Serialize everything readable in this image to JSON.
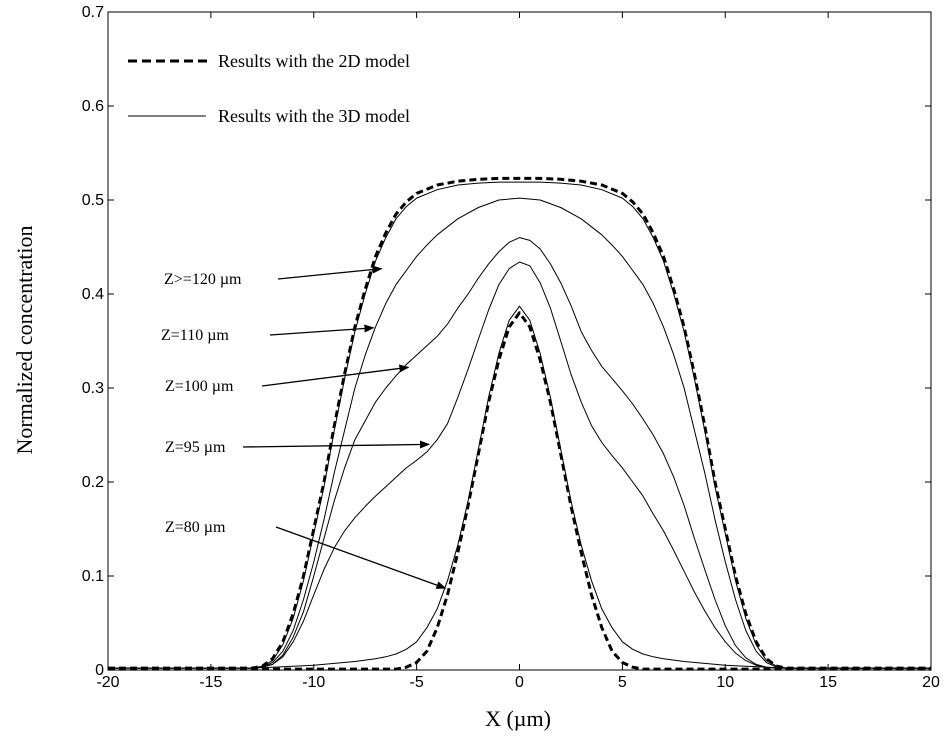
{
  "chart_data": {
    "type": "line",
    "xlabel": "X (µm)",
    "ylabel": "Normalized concentration",
    "xlim": [
      -20,
      20
    ],
    "ylim": [
      0,
      0.7
    ],
    "xticks": [
      -20,
      -15,
      -10,
      -5,
      0,
      5,
      10,
      15,
      20
    ],
    "yticks": [
      0,
      0.1,
      0.2,
      0.3,
      0.4,
      0.5,
      0.6,
      0.7
    ],
    "xtick_labels": [
      "-20",
      "-15",
      "-10",
      "-5",
      "0",
      "5",
      "10",
      "15",
      "20"
    ],
    "ytick_labels": [
      "0",
      "0.1",
      "0.2",
      "0.3",
      "0.4",
      "0.5",
      "0.6",
      "0.7"
    ],
    "grid": false,
    "legend_position": "top-left",
    "legend": [
      {
        "label": "Results with the 2D model",
        "style": "dashed"
      },
      {
        "label": "Results with the 3D model",
        "style": "solid"
      }
    ],
    "series": [
      {
        "model": "2D",
        "z": "Z>=120 µm",
        "style": "dashed",
        "x": [
          -20,
          -13,
          -12.5,
          -12,
          -11.5,
          -11,
          -10.5,
          -10,
          -9.5,
          -9,
          -8.5,
          -8,
          -7.5,
          -7,
          -6.5,
          -6,
          -5.5,
          -5,
          -4,
          -3,
          -2,
          -1,
          0,
          1,
          2,
          3,
          4,
          5,
          5.5,
          6,
          6.5,
          7,
          7.5,
          8,
          8.5,
          9,
          9.5,
          10,
          10.5,
          11,
          11.5,
          12,
          12.5,
          13,
          20
        ],
        "y": [
          0.002,
          0.002,
          0.004,
          0.012,
          0.03,
          0.06,
          0.1,
          0.15,
          0.2,
          0.26,
          0.315,
          0.365,
          0.405,
          0.44,
          0.465,
          0.485,
          0.498,
          0.507,
          0.516,
          0.52,
          0.522,
          0.523,
          0.523,
          0.523,
          0.522,
          0.52,
          0.516,
          0.507,
          0.498,
          0.485,
          0.465,
          0.44,
          0.405,
          0.365,
          0.315,
          0.26,
          0.2,
          0.15,
          0.1,
          0.06,
          0.03,
          0.012,
          0.004,
          0.002,
          0.002
        ]
      },
      {
        "model": "3D",
        "z": "Z>=120 µm",
        "style": "solid",
        "x": [
          -20,
          -13,
          -12.5,
          -12,
          -11.5,
          -11,
          -10.5,
          -10,
          -9.5,
          -9,
          -8.5,
          -8,
          -7.5,
          -7,
          -6.5,
          -6,
          -5.5,
          -5,
          -4,
          -3,
          -2,
          -1,
          0,
          1,
          2,
          3,
          4,
          5,
          5.5,
          6,
          6.5,
          7,
          7.5,
          8,
          8.5,
          9,
          9.5,
          10,
          10.5,
          11,
          11.5,
          12,
          12.5,
          13,
          20
        ],
        "y": [
          0.002,
          0.002,
          0.004,
          0.01,
          0.027,
          0.055,
          0.095,
          0.145,
          0.195,
          0.255,
          0.31,
          0.36,
          0.4,
          0.435,
          0.46,
          0.48,
          0.493,
          0.502,
          0.511,
          0.516,
          0.518,
          0.519,
          0.519,
          0.519,
          0.518,
          0.516,
          0.511,
          0.502,
          0.493,
          0.48,
          0.46,
          0.435,
          0.4,
          0.36,
          0.31,
          0.255,
          0.195,
          0.145,
          0.095,
          0.055,
          0.027,
          0.01,
          0.004,
          0.002,
          0.002
        ]
      },
      {
        "model": "3D",
        "z": "Z=110 µm",
        "style": "solid",
        "x": [
          -20,
          -13,
          -12.5,
          -12,
          -11.5,
          -11,
          -10.5,
          -10,
          -9.5,
          -9,
          -8.5,
          -8,
          -7.5,
          -7,
          -6.5,
          -6,
          -5.5,
          -5,
          -4.5,
          -4,
          -3,
          -2,
          -1,
          0,
          1,
          2,
          3,
          4,
          4.5,
          5,
          5.5,
          6,
          6.5,
          7,
          7.5,
          8,
          8.5,
          9,
          9.5,
          10,
          10.5,
          11,
          11.5,
          12,
          12.5,
          13,
          20
        ],
        "y": [
          0.002,
          0.002,
          0.003,
          0.008,
          0.02,
          0.042,
          0.075,
          0.115,
          0.16,
          0.21,
          0.255,
          0.3,
          0.335,
          0.365,
          0.39,
          0.41,
          0.425,
          0.44,
          0.452,
          0.463,
          0.48,
          0.492,
          0.5,
          0.502,
          0.5,
          0.492,
          0.48,
          0.463,
          0.452,
          0.44,
          0.425,
          0.41,
          0.39,
          0.365,
          0.335,
          0.3,
          0.255,
          0.21,
          0.16,
          0.115,
          0.075,
          0.042,
          0.02,
          0.008,
          0.003,
          0.002,
          0.002
        ]
      },
      {
        "model": "3D",
        "z": "Z=100 µm",
        "style": "solid",
        "x": [
          -20,
          -13,
          -12.5,
          -12,
          -11.5,
          -11,
          -10.5,
          -10,
          -9.5,
          -9,
          -8.5,
          -8,
          -7.5,
          -7,
          -6.5,
          -6,
          -5.5,
          -5,
          -4.5,
          -4,
          -3.5,
          -3,
          -2.5,
          -2,
          -1.5,
          -1,
          -0.5,
          0,
          0.5,
          1,
          1.5,
          2,
          2.5,
          3,
          3.5,
          4,
          4.5,
          5,
          5.5,
          6,
          6.5,
          7,
          7.5,
          8,
          8.5,
          9,
          9.5,
          10,
          10.5,
          11,
          11.5,
          12,
          12.5,
          13,
          20
        ],
        "y": [
          0.002,
          0.002,
          0.003,
          0.006,
          0.016,
          0.035,
          0.062,
          0.1,
          0.14,
          0.18,
          0.215,
          0.245,
          0.265,
          0.285,
          0.3,
          0.313,
          0.325,
          0.335,
          0.345,
          0.355,
          0.368,
          0.385,
          0.4,
          0.417,
          0.432,
          0.445,
          0.455,
          0.46,
          0.457,
          0.448,
          0.432,
          0.412,
          0.388,
          0.36,
          0.34,
          0.323,
          0.31,
          0.297,
          0.283,
          0.267,
          0.25,
          0.23,
          0.205,
          0.175,
          0.14,
          0.107,
          0.075,
          0.047,
          0.026,
          0.013,
          0.006,
          0.003,
          0.002,
          0.002,
          0.002
        ]
      },
      {
        "model": "3D",
        "z": "Z=95 µm",
        "style": "solid",
        "x": [
          -20,
          -13,
          -12.5,
          -12,
          -11.5,
          -11,
          -10.5,
          -10,
          -9.5,
          -9,
          -8.5,
          -8,
          -7.5,
          -7,
          -6.5,
          -6,
          -5.5,
          -5,
          -4.5,
          -4,
          -3.5,
          -3,
          -2.5,
          -2,
          -1.5,
          -1,
          -0.5,
          0,
          0.5,
          1,
          1.5,
          2,
          2.5,
          3,
          3.5,
          4,
          4.5,
          5,
          5.5,
          6,
          6.5,
          7,
          7.5,
          8,
          8.5,
          9,
          9.5,
          10,
          10.5,
          11,
          11.5,
          12,
          12.5,
          13,
          20
        ],
        "y": [
          0.002,
          0.002,
          0.003,
          0.006,
          0.014,
          0.03,
          0.052,
          0.08,
          0.107,
          0.13,
          0.148,
          0.162,
          0.174,
          0.185,
          0.195,
          0.205,
          0.215,
          0.223,
          0.232,
          0.245,
          0.262,
          0.29,
          0.32,
          0.352,
          0.383,
          0.41,
          0.427,
          0.434,
          0.43,
          0.412,
          0.385,
          0.35,
          0.315,
          0.285,
          0.26,
          0.242,
          0.228,
          0.215,
          0.2,
          0.185,
          0.166,
          0.148,
          0.127,
          0.105,
          0.083,
          0.063,
          0.045,
          0.03,
          0.018,
          0.01,
          0.005,
          0.003,
          0.002,
          0.002,
          0.002
        ]
      },
      {
        "model": "2D",
        "z": "Z=80 µm",
        "style": "dashed",
        "x": [
          -20,
          -6,
          -5.5,
          -5,
          -4.5,
          -4,
          -3.5,
          -3,
          -2.5,
          -2,
          -1.5,
          -1,
          -0.5,
          0,
          0.5,
          1,
          1.5,
          2,
          2.5,
          3,
          3.5,
          4,
          4.5,
          5,
          5.5,
          6,
          20
        ],
        "y": [
          0.001,
          0.001,
          0.003,
          0.008,
          0.02,
          0.045,
          0.08,
          0.125,
          0.175,
          0.23,
          0.285,
          0.33,
          0.365,
          0.38,
          0.365,
          0.33,
          0.285,
          0.23,
          0.175,
          0.125,
          0.08,
          0.045,
          0.02,
          0.008,
          0.003,
          0.001,
          0.001
        ]
      },
      {
        "model": "3D",
        "z": "Z=80 µm",
        "style": "solid",
        "x": [
          -20,
          -13,
          -12,
          -11,
          -10,
          -9,
          -8,
          -7,
          -6.5,
          -6,
          -5.5,
          -5,
          -4.5,
          -4,
          -3.5,
          -3,
          -2.5,
          -2,
          -1.5,
          -1,
          -0.5,
          0,
          0.5,
          1,
          1.5,
          2,
          2.5,
          3,
          3.5,
          4,
          4.5,
          5,
          5.5,
          6,
          6.5,
          7,
          8,
          9,
          10,
          11,
          12,
          13,
          20
        ],
        "y": [
          0.002,
          0.002,
          0.003,
          0.004,
          0.005,
          0.007,
          0.009,
          0.012,
          0.014,
          0.017,
          0.022,
          0.03,
          0.045,
          0.065,
          0.095,
          0.133,
          0.18,
          0.235,
          0.29,
          0.337,
          0.372,
          0.387,
          0.372,
          0.337,
          0.29,
          0.235,
          0.18,
          0.133,
          0.095,
          0.065,
          0.045,
          0.03,
          0.022,
          0.017,
          0.014,
          0.012,
          0.009,
          0.007,
          0.005,
          0.004,
          0.003,
          0.002,
          0.002
        ]
      }
    ],
    "annotations": [
      {
        "text": "Z>=120 µm",
        "arrow_to": [
          -6.7,
          0.427
        ]
      },
      {
        "text": "Z=110 µm",
        "arrow_to": [
          -7.1,
          0.364
        ]
      },
      {
        "text": "Z=100 µm",
        "arrow_to": [
          -5.4,
          0.322
        ]
      },
      {
        "text": "Z=95 µm",
        "arrow_to": [
          -4.4,
          0.24
        ]
      },
      {
        "text": "Z=80 µm",
        "arrow_to": [
          -3.6,
          0.087
        ]
      }
    ]
  }
}
